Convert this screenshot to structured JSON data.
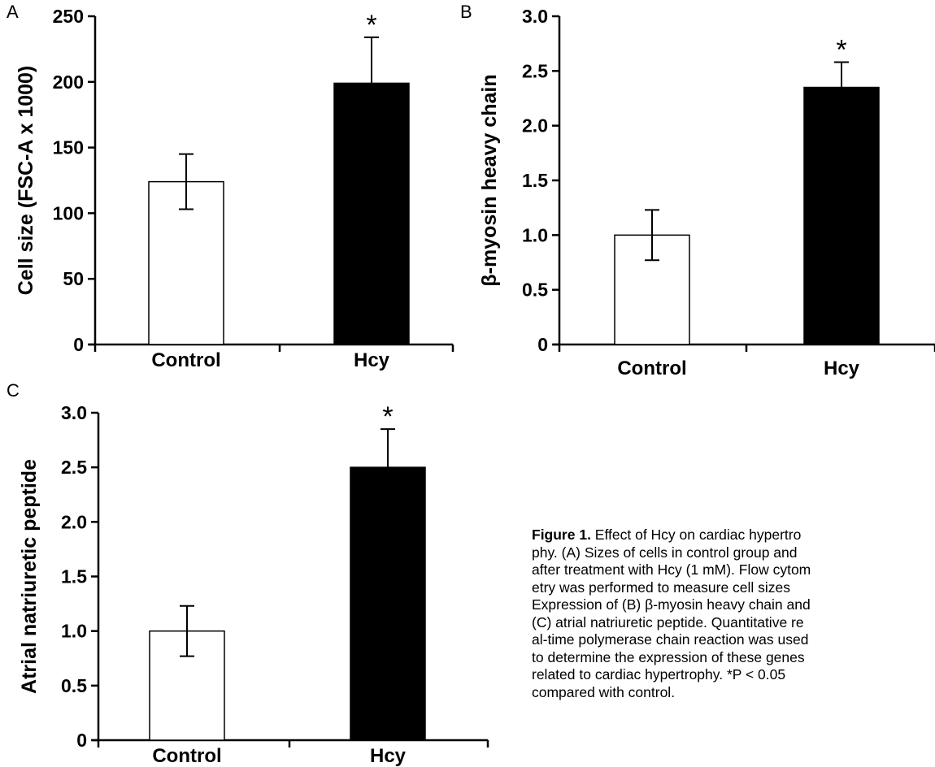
{
  "chart_data": [
    {
      "panel": "A",
      "type": "bar",
      "categories": [
        "Control",
        "Hcy"
      ],
      "values": [
        124,
        199
      ],
      "errors": [
        21,
        35
      ],
      "fills": [
        "#ffffff",
        "#000000"
      ],
      "significance": [
        "",
        "*"
      ],
      "ylabel": "Cell size (FSC-A x 1000)",
      "ylim": [
        0,
        250
      ],
      "yticks": [
        0,
        50,
        100,
        150,
        200,
        250
      ],
      "yticklabels": [
        "0",
        "50",
        "100",
        "150",
        "200",
        "250"
      ]
    },
    {
      "panel": "B",
      "type": "bar",
      "categories": [
        "Control",
        "Hcy"
      ],
      "values": [
        1.0,
        2.35
      ],
      "errors": [
        0.23,
        0.23
      ],
      "fills": [
        "#ffffff",
        "#000000"
      ],
      "significance": [
        "",
        "*"
      ],
      "ylabel": "β-myosin heavy chain",
      "ylim": [
        0,
        3.0
      ],
      "yticks": [
        0,
        0.5,
        1.0,
        1.5,
        2.0,
        2.5,
        3.0
      ],
      "yticklabels": [
        "0",
        "0.5",
        "1.0",
        "1.5",
        "2.0",
        "2.5",
        "3.0"
      ]
    },
    {
      "panel": "C",
      "type": "bar",
      "categories": [
        "Control",
        "Hcy"
      ],
      "values": [
        1.0,
        2.5
      ],
      "errors": [
        0.23,
        0.35
      ],
      "fills": [
        "#ffffff",
        "#000000"
      ],
      "significance": [
        "",
        "*"
      ],
      "ylabel": "Atrial natriuretic peptide",
      "ylim": [
        0,
        3.0
      ],
      "yticks": [
        0,
        0.5,
        1.0,
        1.5,
        2.0,
        2.5,
        3.0
      ],
      "yticklabels": [
        "0",
        "0.5",
        "1.0",
        "1.5",
        "2.0",
        "2.5",
        "3.0"
      ]
    }
  ],
  "caption": {
    "label": "Figure 1.",
    "lines": [
      " Effect of Hcy on cardiac hypertro",
      "phy. (A) Sizes of cells in control group and",
      "after treatment with Hcy (1 mM). Flow cytom",
      "etry was performed to measure cell sizes",
      "Expression of (B) β-myosin heavy chain and",
      "(C) atrial natriuretic peptide. Quantitative re",
      "al-time polymerase chain reaction was used",
      "to determine the expression of these genes",
      "related to cardiac hypertrophy. *P < 0.05",
      "compared with control."
    ]
  }
}
